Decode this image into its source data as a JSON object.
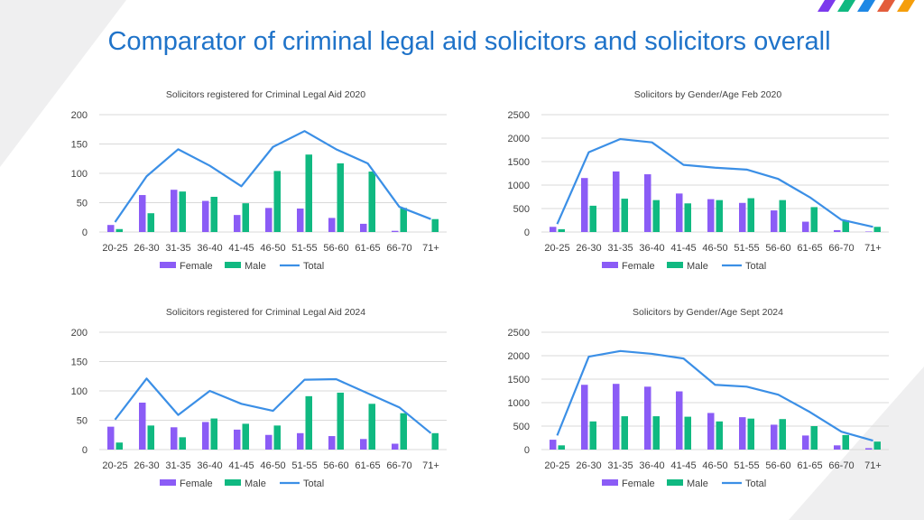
{
  "page": {
    "title": "Comparator of criminal legal aid solicitors and solicitors overall"
  },
  "colors": {
    "female": "#8b5cf6",
    "male": "#10b981",
    "total": "#3b8fe6",
    "stripes": [
      "#7c3aed",
      "#10b981",
      "#1e88e5",
      "#e35d3c",
      "#f59e0b"
    ]
  },
  "legend": {
    "female": "Female",
    "male": "Male",
    "total": "Total"
  },
  "chart_data": [
    {
      "type": "bar+line",
      "title": "Solicitors registered for Criminal Legal Aid 2020",
      "categories": [
        "20-25",
        "26-30",
        "31-35",
        "36-40",
        "41-45",
        "46-50",
        "51-55",
        "56-60",
        "61-65",
        "66-70",
        "71+"
      ],
      "series": [
        {
          "name": "Female",
          "type": "bar",
          "values": [
            12,
            63,
            72,
            53,
            29,
            41,
            40,
            24,
            14,
            2,
            0
          ]
        },
        {
          "name": "Male",
          "type": "bar",
          "values": [
            5,
            32,
            69,
            60,
            49,
            104,
            132,
            117,
            103,
            41,
            22
          ]
        },
        {
          "name": "Total",
          "type": "line",
          "values": [
            17,
            95,
            141,
            113,
            78,
            145,
            172,
            141,
            117,
            43,
            22
          ]
        }
      ],
      "ylim": [
        0,
        200
      ],
      "yticks": [
        0,
        50,
        100,
        150,
        200
      ]
    },
    {
      "type": "bar+line",
      "title": "Solicitors by Gender/Age Feb 2020",
      "categories": [
        "20-25",
        "26-30",
        "31-35",
        "36-40",
        "41-45",
        "46-50",
        "51-55",
        "56-60",
        "61-65",
        "66-70",
        "71+"
      ],
      "series": [
        {
          "name": "Female",
          "type": "bar",
          "values": [
            110,
            1150,
            1290,
            1230,
            820,
            700,
            620,
            460,
            220,
            40,
            10
          ]
        },
        {
          "name": "Male",
          "type": "bar",
          "values": [
            60,
            560,
            710,
            680,
            610,
            680,
            720,
            680,
            530,
            250,
            110
          ]
        },
        {
          "name": "Total",
          "type": "line",
          "values": [
            170,
            1700,
            1980,
            1910,
            1430,
            1370,
            1330,
            1130,
            740,
            260,
            110
          ]
        }
      ],
      "ylim": [
        0,
        2500
      ],
      "yticks": [
        0,
        500,
        1000,
        1500,
        2000,
        2500
      ]
    },
    {
      "type": "bar+line",
      "title": "Solicitors registered for Criminal Legal Aid 2024",
      "categories": [
        "20-25",
        "26-30",
        "31-35",
        "36-40",
        "41-45",
        "46-50",
        "51-55",
        "56-60",
        "61-65",
        "66-70",
        "71+"
      ],
      "series": [
        {
          "name": "Female",
          "type": "bar",
          "values": [
            39,
            80,
            38,
            47,
            34,
            25,
            28,
            23,
            18,
            10,
            0
          ]
        },
        {
          "name": "Male",
          "type": "bar",
          "values": [
            12,
            41,
            21,
            53,
            44,
            41,
            91,
            97,
            78,
            62,
            28
          ]
        },
        {
          "name": "Total",
          "type": "line",
          "values": [
            51,
            121,
            59,
            100,
            78,
            66,
            119,
            120,
            96,
            72,
            28
          ]
        }
      ],
      "ylim": [
        0,
        200
      ],
      "yticks": [
        0,
        50,
        100,
        150,
        200
      ]
    },
    {
      "type": "bar+line",
      "title": "Solicitors by Gender/Age Sept 2024",
      "categories": [
        "20-25",
        "26-30",
        "31-35",
        "36-40",
        "41-45",
        "46-50",
        "51-55",
        "56-60",
        "61-65",
        "66-70",
        "71+"
      ],
      "series": [
        {
          "name": "Female",
          "type": "bar",
          "values": [
            210,
            1380,
            1400,
            1340,
            1240,
            780,
            690,
            530,
            300,
            90,
            30
          ]
        },
        {
          "name": "Male",
          "type": "bar",
          "values": [
            90,
            600,
            710,
            710,
            700,
            600,
            660,
            650,
            500,
            310,
            170
          ]
        },
        {
          "name": "Total",
          "type": "line",
          "values": [
            300,
            1980,
            2100,
            2040,
            1940,
            1380,
            1340,
            1170,
            800,
            380,
            190
          ]
        }
      ],
      "ylim": [
        0,
        2500
      ],
      "yticks": [
        0,
        500,
        1000,
        1500,
        2000,
        2500
      ]
    }
  ]
}
